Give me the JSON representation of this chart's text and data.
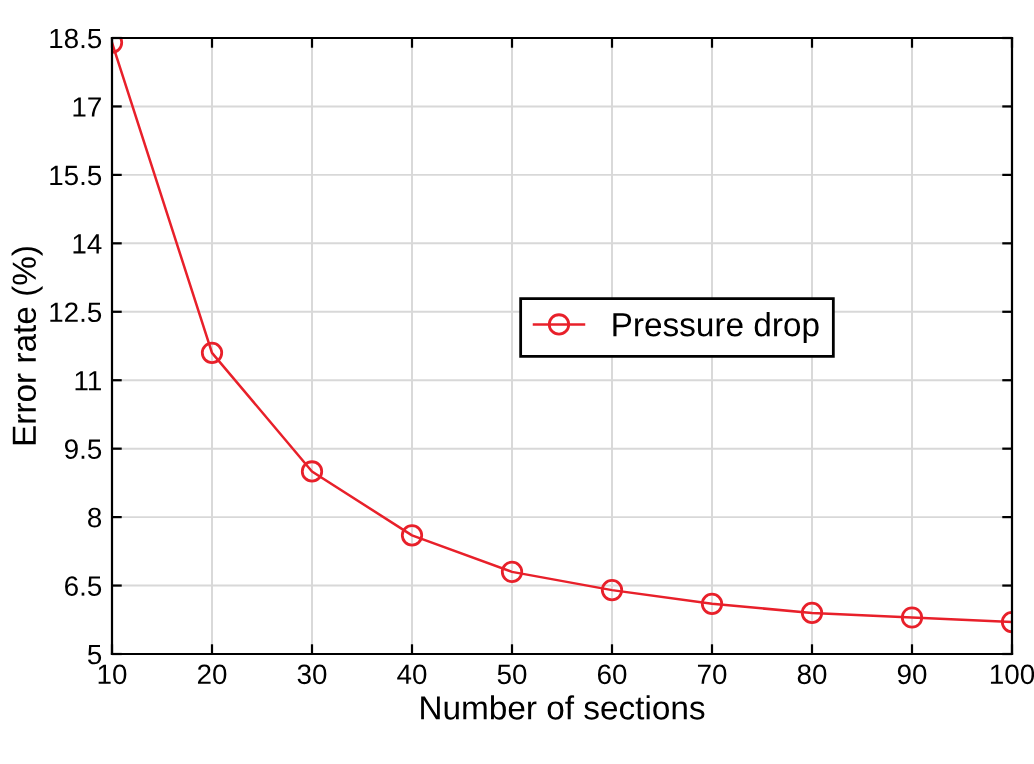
{
  "chart_data": {
    "type": "line",
    "xlabel": "Number of sections",
    "ylabel": "Error rate (%)",
    "x": [
      10,
      20,
      30,
      40,
      50,
      60,
      70,
      80,
      90,
      100
    ],
    "series": [
      {
        "name": "Pressure drop",
        "color": "#e8202a",
        "values": [
          18.4,
          11.6,
          9.0,
          7.6,
          6.8,
          6.4,
          6.1,
          5.9,
          5.8,
          5.7
        ]
      }
    ],
    "xlim": [
      10,
      100
    ],
    "xticks": [
      10,
      20,
      30,
      40,
      50,
      60,
      70,
      80,
      90,
      100
    ],
    "ylim": [
      5,
      18.5
    ],
    "yticks": [
      5,
      6.5,
      8,
      9.5,
      11,
      12.5,
      14,
      15.5,
      17,
      18.5
    ],
    "grid": true,
    "legend": "right",
    "marker": "circle",
    "line_style": "solid"
  }
}
